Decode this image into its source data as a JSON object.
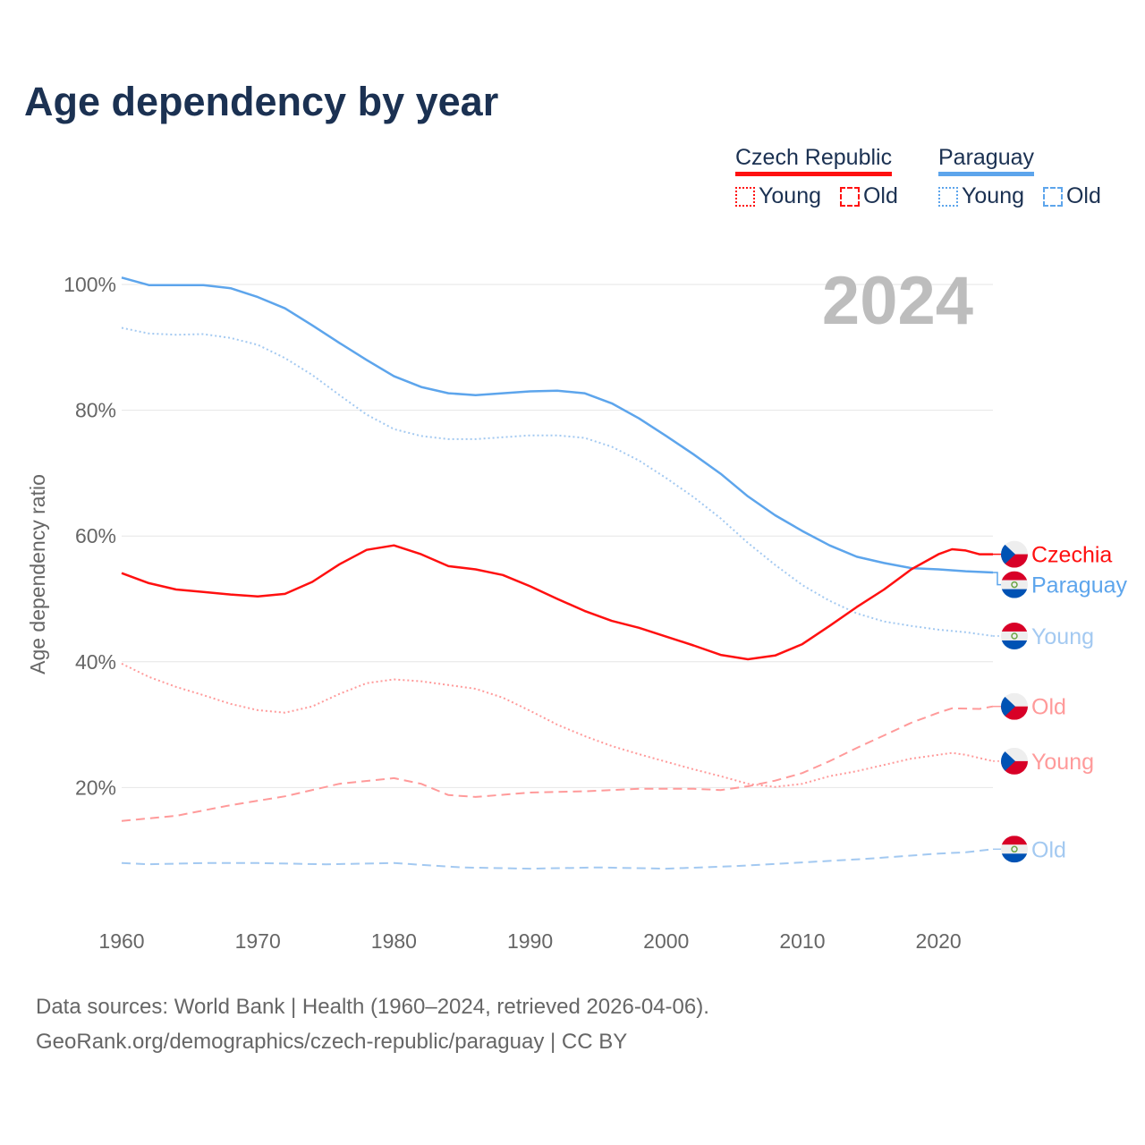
{
  "title": "Age dependency by year",
  "legend": {
    "groups": [
      {
        "name": "Czech Republic",
        "color": "#ff1010",
        "young": "Young",
        "old": "Old"
      },
      {
        "name": "Paraguay",
        "color": "#5da5ec",
        "young": "Young",
        "old": "Old"
      }
    ]
  },
  "footer": {
    "line1": "Data sources: World Bank | Health (1960–2024, retrieved 2026-04-06).",
    "line2": "GeoRank.org/demographics/czech-republic/paraguay | CC BY"
  },
  "chart_data": {
    "type": "line",
    "title": "Age dependency by year",
    "xlabel": "",
    "ylabel": "Age dependency ratio",
    "xlim": [
      1960,
      2024
    ],
    "ylim": [
      0,
      100
    ],
    "x_ticks": [
      1960,
      1970,
      1980,
      1990,
      2000,
      2010,
      2020
    ],
    "y_ticks": [
      {
        "v": 20,
        "label": "20%"
      },
      {
        "v": 40,
        "label": "40%"
      },
      {
        "v": 60,
        "label": "60%"
      },
      {
        "v": 80,
        "label": "80%"
      },
      {
        "v": 100,
        "label": "100%"
      }
    ],
    "grid": true,
    "year_watermark": "2024",
    "series": [
      {
        "name": "Paraguay",
        "end_label": "Paraguay",
        "flag": "paraguay",
        "color": "#5da5ec",
        "style": "solid",
        "x": [
          1960,
          1962,
          1966,
          1968,
          1970,
          1972,
          1974,
          1976,
          1978,
          1980,
          1982,
          1984,
          1986,
          1988,
          1990,
          1992,
          1994,
          1996,
          1998,
          2000,
          2002,
          2004,
          2006,
          2008,
          2010,
          2012,
          2014,
          2016,
          2018,
          2020,
          2022,
          2024
        ],
        "y": [
          101.1,
          99.9,
          99.9,
          99.4,
          98,
          96.2,
          93.5,
          90.7,
          88,
          85.4,
          83.7,
          82.7,
          82.4,
          82.7,
          83,
          83.1,
          82.7,
          81.1,
          78.7,
          75.9,
          73,
          69.9,
          66.3,
          63.3,
          60.8,
          58.5,
          56.7,
          55.7,
          54.9,
          54.7,
          54.4,
          54.2
        ]
      },
      {
        "name": "Paraguay Young",
        "end_label": "Young",
        "flag": "paraguay",
        "color": "#a3c9f1",
        "style": "dotted",
        "x": [
          1960,
          1962,
          1964,
          1966,
          1968,
          1970,
          1972,
          1974,
          1976,
          1978,
          1980,
          1982,
          1984,
          1986,
          1988,
          1990,
          1992,
          1994,
          1996,
          1998,
          2000,
          2002,
          2004,
          2006,
          2008,
          2010,
          2012,
          2014,
          2016,
          2018,
          2020,
          2022,
          2024
        ],
        "y": [
          93.1,
          92.2,
          92,
          92.1,
          91.5,
          90.4,
          88.3,
          85.6,
          82.4,
          79.3,
          77,
          75.9,
          75.4,
          75.4,
          75.7,
          76,
          76,
          75.6,
          74.2,
          72,
          69.2,
          66.2,
          62.8,
          58.9,
          55.4,
          52.2,
          49.7,
          47.7,
          46.4,
          45.7,
          45.1,
          44.7,
          44.1
        ]
      },
      {
        "name": "Paraguay Old",
        "end_label": "Old",
        "flag": "paraguay",
        "color": "#a3c9f1",
        "style": "dashed",
        "x": [
          1960,
          1962,
          1966,
          1970,
          1975,
          1980,
          1985,
          1990,
          1995,
          2000,
          2005,
          2010,
          2015,
          2020,
          2022,
          2024
        ],
        "y": [
          8.0,
          7.8,
          8.0,
          8.0,
          7.8,
          8.0,
          7.3,
          7.1,
          7.3,
          7.1,
          7.5,
          8.1,
          8.7,
          9.5,
          9.7,
          10.2
        ]
      },
      {
        "name": "Czechia",
        "end_label": "Czechia",
        "flag": "czechia",
        "color": "#ff1010",
        "style": "solid",
        "x": [
          1960,
          1962,
          1964,
          1966,
          1968,
          1970,
          1972,
          1974,
          1976,
          1978,
          1980,
          1982,
          1984,
          1986,
          1988,
          1990,
          1992,
          1994,
          1996,
          1998,
          2000,
          2002,
          2004,
          2006,
          2008,
          2010,
          2012,
          2014,
          2016,
          2018,
          2020,
          2021,
          2022,
          2023,
          2024
        ],
        "y": [
          54.1,
          52.5,
          51.5,
          51.1,
          50.7,
          50.4,
          50.8,
          52.7,
          55.5,
          57.8,
          58.5,
          57.1,
          55.2,
          54.7,
          53.8,
          52,
          50,
          48.1,
          46.5,
          45.4,
          44,
          42.6,
          41.1,
          40.4,
          41,
          42.8,
          45.7,
          48.7,
          51.5,
          54.7,
          57.1,
          57.9,
          57.7,
          57.1,
          57.1
        ]
      },
      {
        "name": "Czechia Young",
        "end_label": "Young",
        "flag": "czechia",
        "color": "#ff9a9a",
        "style": "dotted",
        "x": [
          1960,
          1962,
          1964,
          1966,
          1968,
          1970,
          1972,
          1974,
          1976,
          1978,
          1980,
          1982,
          1984,
          1986,
          1988,
          1990,
          1992,
          1994,
          1996,
          1998,
          2000,
          2002,
          2004,
          2006,
          2008,
          2010,
          2012,
          2014,
          2016,
          2018,
          2020,
          2021,
          2022,
          2024
        ],
        "y": [
          39.7,
          37.6,
          36,
          34.7,
          33.3,
          32.3,
          31.9,
          32.9,
          34.9,
          36.6,
          37.2,
          36.9,
          36.3,
          35.7,
          34.3,
          32.2,
          30,
          28.2,
          26.6,
          25.3,
          24.1,
          22.9,
          21.8,
          20.6,
          20.1,
          20.6,
          21.8,
          22.6,
          23.6,
          24.6,
          25.2,
          25.5,
          25.2,
          24.2
        ]
      },
      {
        "name": "Czechia Old",
        "end_label": "Old",
        "flag": "czechia",
        "color": "#ff9a9a",
        "style": "dashed",
        "x": [
          1960,
          1964,
          1968,
          1972,
          1976,
          1980,
          1982,
          1984,
          1986,
          1990,
          1994,
          1998,
          2002,
          2004,
          2006,
          2008,
          2010,
          2012,
          2014,
          2016,
          2018,
          2020,
          2021,
          2023,
          2024
        ],
        "y": [
          14.7,
          15.5,
          17.2,
          18.6,
          20.6,
          21.5,
          20.6,
          18.8,
          18.5,
          19.2,
          19.4,
          19.8,
          19.8,
          19.6,
          20.2,
          21.1,
          22.3,
          24.2,
          26.3,
          28.3,
          30.3,
          31.9,
          32.6,
          32.5,
          32.9
        ]
      }
    ]
  }
}
